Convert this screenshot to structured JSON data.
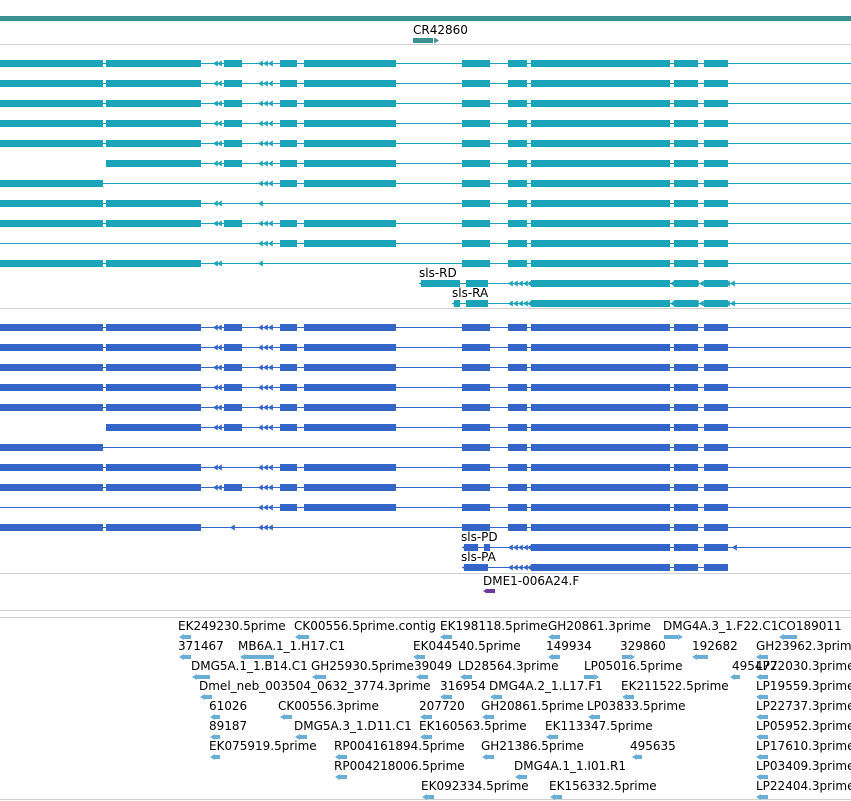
{
  "colors": {
    "top_band": "#3a8f8f",
    "ncrna": "#3a8f8f",
    "transcript_teal": "#1ba3b9",
    "transcript_blue": "#3465c9",
    "primer": "#6a3aa0",
    "est": "#6aaed6",
    "divider": "#cfcfcf"
  },
  "tracks": {
    "ncrna": {
      "label": "CR42860"
    },
    "transcripts_teal": {
      "labels": [
        "sls-RD",
        "sls-RA"
      ]
    },
    "transcripts_blue": {
      "labels": [
        "sls-PD",
        "sls-PA"
      ]
    },
    "primer": {
      "label": "DME1-006A24.F"
    },
    "est": {
      "labels": [
        "EK249230.5prime",
        "CK00556.5prime.contig",
        "EK198118.5prime",
        "GH20861.3prime",
        "DMG4A.3_1.F22.C1",
        "CO189011",
        "371467",
        "MB6A.1_1.H17.C1",
        "EK044540.5prime",
        "149934",
        "329860",
        "192682",
        "GH23962.3prime",
        "DMG5A.1_1.B14.C1",
        "GH25930.5prime",
        "39049",
        "LD28564.3prime",
        "LP05016.5prime",
        "495477",
        "LP22030.3prime",
        "Dmel_neb_003504_0632_3774.3prime",
        "316954",
        "DMG4A.2_1.L17.F1",
        "EK211522.5prime",
        "LP19559.3prime",
        "61026",
        "CK00556.3prime",
        "207720",
        "GH20861.5prime",
        "LP03833.5prime",
        "LP22737.3prime",
        "89187",
        "DMG5A.3_1.D11.C1",
        "EK160563.5prime",
        "EK113347.5prime",
        "LP05952.3prime",
        "EK075919.5prime",
        "RP004161894.5prime",
        "GH21386.5prime",
        "495635",
        "LP17610.3prime",
        "RP004218006.5prime",
        "DMG4A.1_1.I01.R1",
        "LP03409.3prime",
        "EK092334.5prime",
        "EK156332.5prime",
        "LP22404.3prime"
      ]
    }
  }
}
